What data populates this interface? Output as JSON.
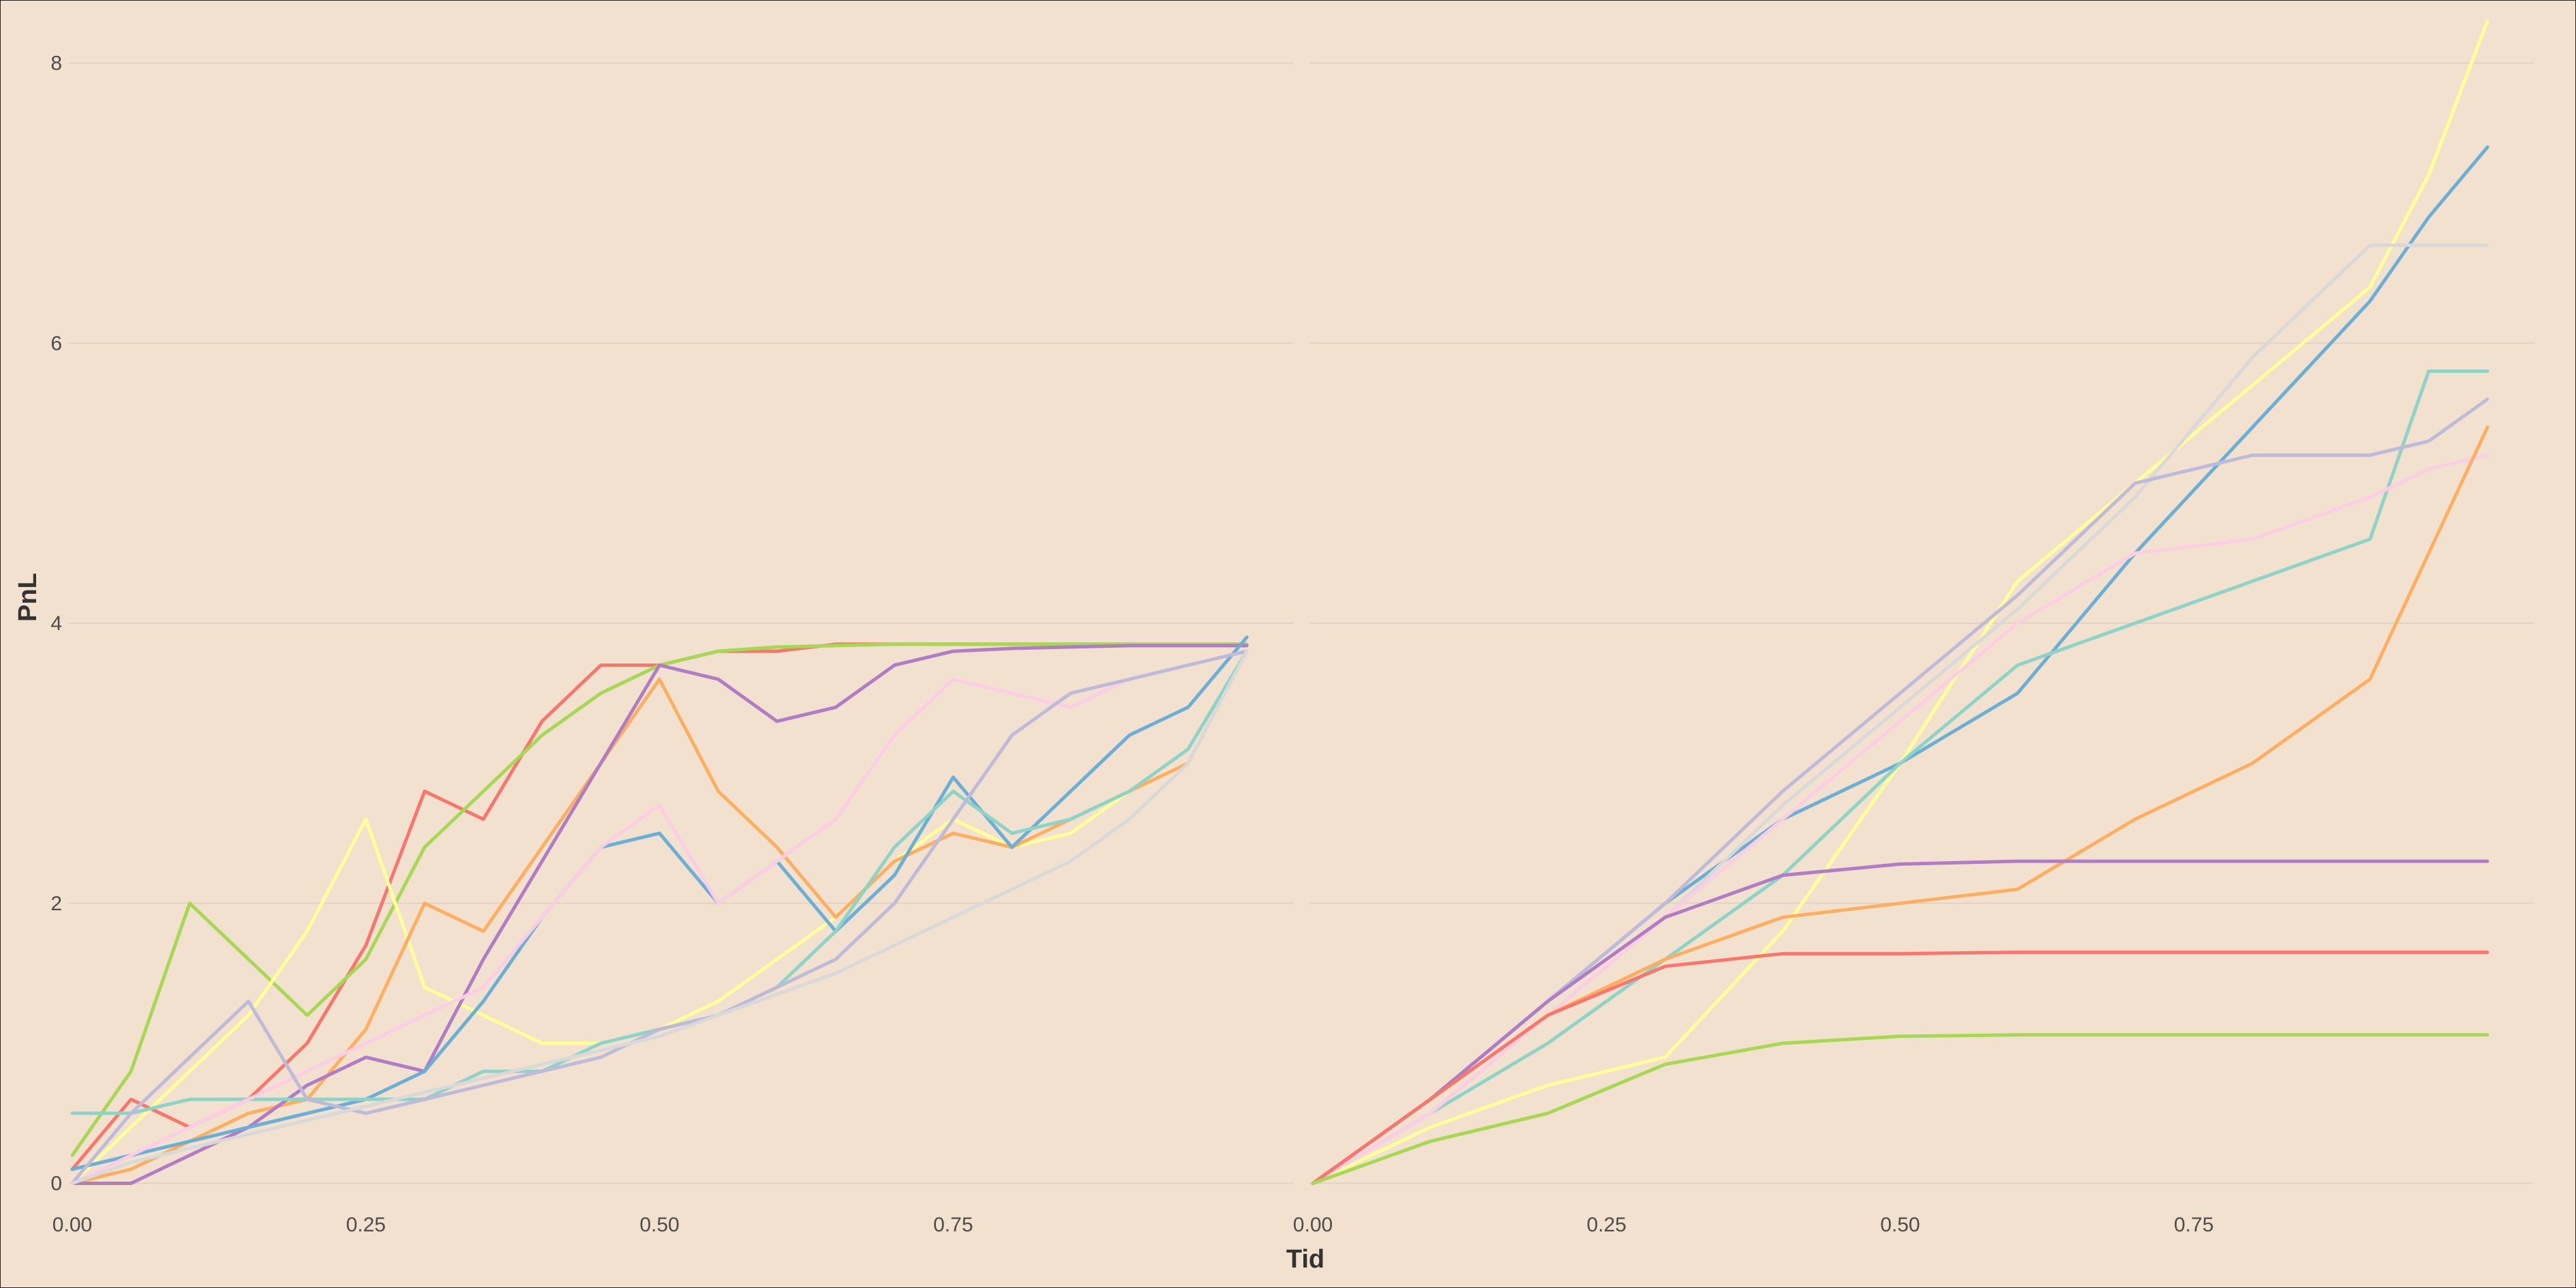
{
  "chart_data": [
    {
      "type": "line",
      "panel": "left",
      "xlabel": "Tid",
      "ylabel": "PnL",
      "xlim": [
        0,
        1
      ],
      "ylim": [
        -0.1,
        8.3
      ],
      "x_ticks": [
        "0.00",
        "0.25",
        "0.50",
        "0.75"
      ],
      "y_ticks": [
        "0",
        "2",
        "4",
        "6",
        "8"
      ],
      "grid": true,
      "legend": "none",
      "series": [
        {
          "color": "#F8766D",
          "x": [
            0,
            0.05,
            0.1,
            0.15,
            0.2,
            0.25,
            0.3,
            0.35,
            0.4,
            0.45,
            0.5,
            0.55,
            0.6,
            0.65,
            0.7,
            0.75,
            0.8,
            0.85,
            0.9,
            0.95,
            1.0
          ],
          "y": [
            0.1,
            0.6,
            0.4,
            0.6,
            1.0,
            1.7,
            2.8,
            2.6,
            3.3,
            3.7,
            3.7,
            3.8,
            3.8,
            3.85,
            3.85,
            3.85,
            3.85,
            3.85,
            3.85,
            3.85,
            3.85
          ]
        },
        {
          "color": "#A6D854",
          "x": [
            0,
            0.05,
            0.1,
            0.15,
            0.2,
            0.25,
            0.3,
            0.35,
            0.4,
            0.45,
            0.5,
            0.55,
            0.6,
            0.65,
            0.7,
            0.75,
            0.8,
            0.85,
            0.9,
            0.95,
            1.0
          ],
          "y": [
            0.2,
            0.8,
            2.0,
            1.6,
            1.2,
            1.6,
            2.4,
            2.8,
            3.2,
            3.5,
            3.7,
            3.8,
            3.83,
            3.84,
            3.85,
            3.85,
            3.85,
            3.85,
            3.85,
            3.85,
            3.85
          ]
        },
        {
          "color": "#FFFF99",
          "x": [
            0,
            0.05,
            0.1,
            0.15,
            0.2,
            0.25,
            0.3,
            0.35,
            0.4,
            0.45,
            0.5,
            0.55,
            0.6,
            0.65,
            0.7,
            0.75,
            0.8,
            0.85,
            0.9,
            0.95,
            1.0
          ],
          "y": [
            0.0,
            0.4,
            0.8,
            1.2,
            1.8,
            2.6,
            1.4,
            1.2,
            1.0,
            1.0,
            1.1,
            1.3,
            1.6,
            1.9,
            2.3,
            2.6,
            2.4,
            2.5,
            2.8,
            3.0,
            3.8
          ]
        },
        {
          "color": "#FDAE61",
          "x": [
            0,
            0.05,
            0.1,
            0.15,
            0.2,
            0.25,
            0.3,
            0.35,
            0.4,
            0.45,
            0.5,
            0.55,
            0.6,
            0.65,
            0.7,
            0.75,
            0.8,
            0.85,
            0.9,
            0.95,
            1.0
          ],
          "y": [
            0.0,
            0.1,
            0.3,
            0.5,
            0.6,
            1.1,
            2.0,
            1.8,
            2.4,
            3.0,
            3.6,
            2.8,
            2.4,
            1.9,
            2.3,
            2.5,
            2.4,
            2.6,
            2.8,
            3.0,
            3.8
          ]
        },
        {
          "color": "#B07CC6",
          "x": [
            0,
            0.05,
            0.1,
            0.15,
            0.2,
            0.25,
            0.3,
            0.35,
            0.4,
            0.45,
            0.5,
            0.55,
            0.6,
            0.65,
            0.7,
            0.75,
            0.8,
            0.85,
            0.9,
            0.95,
            1.0
          ],
          "y": [
            0.0,
            0.0,
            0.2,
            0.4,
            0.7,
            0.9,
            0.8,
            1.6,
            2.3,
            3.0,
            3.7,
            3.6,
            3.3,
            3.4,
            3.7,
            3.8,
            3.82,
            3.83,
            3.84,
            3.84,
            3.84
          ]
        },
        {
          "color": "#6BAED6",
          "x": [
            0,
            0.05,
            0.1,
            0.15,
            0.2,
            0.25,
            0.3,
            0.35,
            0.4,
            0.45,
            0.5,
            0.55,
            0.6,
            0.65,
            0.7,
            0.75,
            0.8,
            0.85,
            0.9,
            0.95,
            1.0
          ],
          "y": [
            0.1,
            0.2,
            0.3,
            0.4,
            0.5,
            0.6,
            0.8,
            1.3,
            1.9,
            2.4,
            2.5,
            2.0,
            2.3,
            1.8,
            2.2,
            2.9,
            2.4,
            2.8,
            3.2,
            3.4,
            3.9
          ]
        },
        {
          "color": "#8DD3C7",
          "x": [
            0,
            0.05,
            0.1,
            0.15,
            0.2,
            0.25,
            0.3,
            0.35,
            0.4,
            0.45,
            0.5,
            0.55,
            0.6,
            0.65,
            0.7,
            0.75,
            0.8,
            0.85,
            0.9,
            0.95,
            1.0
          ],
          "y": [
            0.5,
            0.5,
            0.6,
            0.6,
            0.6,
            0.6,
            0.6,
            0.8,
            0.8,
            1.0,
            1.1,
            1.2,
            1.4,
            1.8,
            2.4,
            2.8,
            2.5,
            2.6,
            2.8,
            3.1,
            3.8
          ]
        },
        {
          "color": "#FCCDE5",
          "x": [
            0,
            0.05,
            0.1,
            0.15,
            0.2,
            0.25,
            0.3,
            0.35,
            0.4,
            0.45,
            0.5,
            0.55,
            0.6,
            0.65,
            0.7,
            0.75,
            0.8,
            0.85,
            0.9,
            0.95,
            1.0
          ],
          "y": [
            0.0,
            0.2,
            0.4,
            0.6,
            0.8,
            1.0,
            1.2,
            1.4,
            1.9,
            2.4,
            2.7,
            2.0,
            2.3,
            2.6,
            3.2,
            3.6,
            3.5,
            3.4,
            3.6,
            3.7,
            3.8
          ]
        },
        {
          "color": "#BEBADA",
          "x": [
            0,
            0.05,
            0.1,
            0.15,
            0.2,
            0.25,
            0.3,
            0.35,
            0.4,
            0.45,
            0.5,
            0.55,
            0.6,
            0.65,
            0.7,
            0.75,
            0.8,
            0.85,
            0.9,
            0.95,
            1.0
          ],
          "y": [
            0.0,
            0.5,
            0.9,
            1.3,
            0.6,
            0.5,
            0.6,
            0.7,
            0.8,
            0.9,
            1.1,
            1.2,
            1.4,
            1.6,
            2.0,
            2.6,
            3.2,
            3.5,
            3.6,
            3.7,
            3.8
          ]
        },
        {
          "color": "#D9D9D9",
          "x": [
            0,
            0.05,
            0.1,
            0.15,
            0.2,
            0.25,
            0.3,
            0.35,
            0.4,
            0.45,
            0.5,
            0.55,
            0.6,
            0.65,
            0.7,
            0.75,
            0.8,
            0.85,
            0.9,
            0.95,
            1.0
          ],
          "y": [
            0.0,
            0.15,
            0.25,
            0.35,
            0.45,
            0.55,
            0.65,
            0.75,
            0.85,
            0.95,
            1.05,
            1.2,
            1.35,
            1.5,
            1.7,
            1.9,
            2.1,
            2.3,
            2.6,
            3.0,
            3.8
          ]
        }
      ]
    },
    {
      "type": "line",
      "panel": "right",
      "xlabel": "Tid",
      "ylabel": "PnL",
      "xlim": [
        0,
        1
      ],
      "ylim": [
        -0.1,
        8.3
      ],
      "x_ticks": [
        "0.00",
        "0.25",
        "0.50",
        "0.75"
      ],
      "y_ticks": [
        "0",
        "2",
        "4",
        "6",
        "8"
      ],
      "grid": true,
      "legend": "none",
      "series": [
        {
          "color": "#FFFF99",
          "x": [
            0,
            0.1,
            0.2,
            0.3,
            0.4,
            0.5,
            0.6,
            0.7,
            0.8,
            0.9,
            0.95,
            1.0
          ],
          "y": [
            0,
            0.4,
            0.7,
            0.9,
            1.8,
            3.0,
            4.3,
            5.0,
            5.7,
            6.4,
            7.2,
            8.3
          ]
        },
        {
          "color": "#6BAED6",
          "x": [
            0,
            0.1,
            0.2,
            0.3,
            0.4,
            0.5,
            0.6,
            0.7,
            0.8,
            0.9,
            0.95,
            1.0
          ],
          "y": [
            0,
            0.6,
            1.3,
            2.0,
            2.6,
            3.0,
            3.5,
            4.5,
            5.4,
            6.3,
            6.9,
            7.4
          ]
        },
        {
          "color": "#D9D9D9",
          "x": [
            0,
            0.1,
            0.2,
            0.3,
            0.4,
            0.5,
            0.6,
            0.7,
            0.8,
            0.9,
            0.95,
            1.0
          ],
          "y": [
            0,
            0.5,
            1.2,
            1.9,
            2.7,
            3.4,
            4.1,
            4.9,
            5.9,
            6.7,
            6.7,
            6.7
          ]
        },
        {
          "color": "#8DD3C7",
          "x": [
            0,
            0.1,
            0.2,
            0.3,
            0.4,
            0.5,
            0.6,
            0.7,
            0.8,
            0.9,
            0.95,
            1.0
          ],
          "y": [
            0,
            0.5,
            1.0,
            1.6,
            2.2,
            3.0,
            3.7,
            4.0,
            4.3,
            4.6,
            5.8,
            5.8
          ]
        },
        {
          "color": "#BEBADA",
          "x": [
            0,
            0.1,
            0.2,
            0.3,
            0.4,
            0.5,
            0.6,
            0.7,
            0.8,
            0.9,
            0.95,
            1.0
          ],
          "y": [
            0,
            0.6,
            1.3,
            2.0,
            2.8,
            3.5,
            4.2,
            5.0,
            5.2,
            5.2,
            5.3,
            5.6
          ]
        },
        {
          "color": "#FCCDE5",
          "x": [
            0,
            0.1,
            0.2,
            0.3,
            0.4,
            0.5,
            0.6,
            0.7,
            0.8,
            0.9,
            0.95,
            1.0
          ],
          "y": [
            0,
            0.5,
            1.2,
            1.9,
            2.6,
            3.3,
            4.0,
            4.5,
            4.6,
            4.9,
            5.1,
            5.2
          ]
        },
        {
          "color": "#FDAE61",
          "x": [
            0,
            0.1,
            0.2,
            0.3,
            0.4,
            0.5,
            0.6,
            0.7,
            0.8,
            0.9,
            0.95,
            1.0
          ],
          "y": [
            0,
            0.6,
            1.2,
            1.6,
            1.9,
            2.0,
            2.1,
            2.6,
            3.0,
            3.6,
            4.5,
            5.4
          ]
        },
        {
          "color": "#B07CC6",
          "x": [
            0,
            0.1,
            0.2,
            0.3,
            0.4,
            0.5,
            0.6,
            0.7,
            0.8,
            0.9,
            1.0
          ],
          "y": [
            0,
            0.6,
            1.3,
            1.9,
            2.2,
            2.28,
            2.3,
            2.3,
            2.3,
            2.3,
            2.3
          ]
        },
        {
          "color": "#F8766D",
          "x": [
            0,
            0.1,
            0.2,
            0.3,
            0.4,
            0.5,
            0.6,
            0.7,
            0.8,
            0.9,
            1.0
          ],
          "y": [
            0,
            0.6,
            1.2,
            1.55,
            1.64,
            1.64,
            1.65,
            1.65,
            1.65,
            1.65,
            1.65
          ]
        },
        {
          "color": "#A6D854",
          "x": [
            0,
            0.1,
            0.2,
            0.3,
            0.4,
            0.5,
            0.6,
            0.7,
            0.8,
            0.9,
            1.0
          ],
          "y": [
            0,
            0.3,
            0.5,
            0.85,
            1.0,
            1.05,
            1.06,
            1.06,
            1.06,
            1.06,
            1.06
          ]
        }
      ]
    }
  ]
}
